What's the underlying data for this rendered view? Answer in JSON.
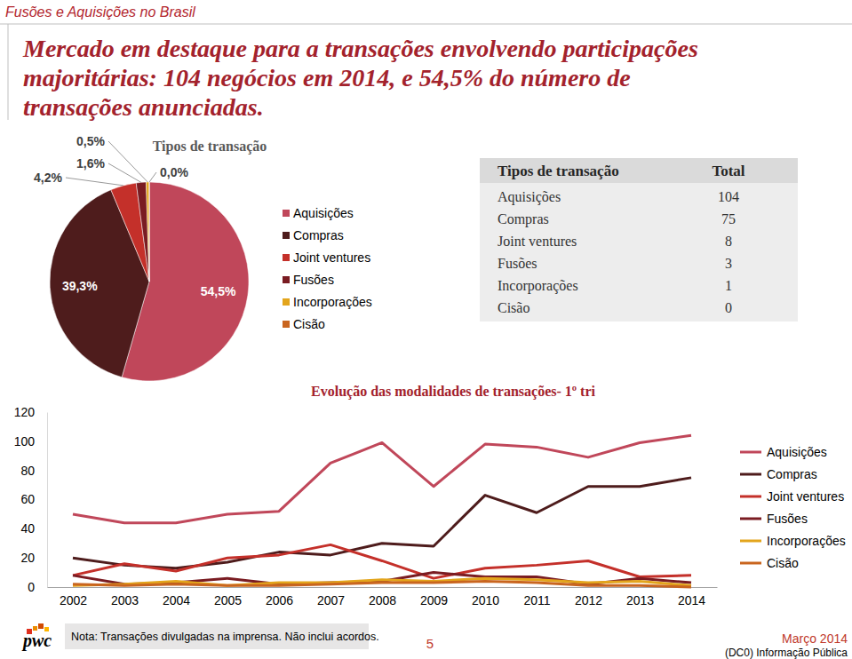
{
  "header": "Fusões e Aquisições no Brasil",
  "headline": [
    "Mercado em destaque para a transações envolvendo participações",
    "majoritárias: 104 negócios em 2014, e 54,5% do número de",
    "transações anunciadas."
  ],
  "chart_data": [
    {
      "type": "pie",
      "title": "Tipos de transação",
      "categories": [
        "Aquisições",
        "Compras",
        "Joint ventures",
        "Fusões",
        "Incorporações",
        "Cisão"
      ],
      "values": [
        54.5,
        39.3,
        4.2,
        1.6,
        0.5,
        0.0
      ],
      "value_labels": [
        "54,5%",
        "39,3%",
        "4,2%",
        "1,6%",
        "0,5%",
        "0,0%"
      ],
      "colors": [
        "#C0475A",
        "#4E1C1C",
        "#C4302A",
        "#7A1C22",
        "#E3A51C",
        "#C9651F"
      ],
      "data_labels": true,
      "legend": "right"
    },
    {
      "type": "line",
      "title": "Evolução das modalidades de transações- 1º tri",
      "categories": [
        "2002",
        "2003",
        "2004",
        "2005",
        "2006",
        "2007",
        "2008",
        "2009",
        "2010",
        "2011",
        "2012",
        "2013",
        "2014"
      ],
      "series": [
        {
          "name": "Aquisições",
          "color": "#C0475A",
          "values": [
            50,
            44,
            44,
            50,
            52,
            85,
            99,
            69,
            98,
            96,
            89,
            99,
            104
          ]
        },
        {
          "name": "Compras",
          "color": "#4E1C1C",
          "values": [
            20,
            15,
            13,
            17,
            24,
            22,
            30,
            28,
            63,
            51,
            69,
            69,
            75
          ]
        },
        {
          "name": "Joint ventures",
          "color": "#C4302A",
          "values": [
            8,
            16,
            11,
            20,
            22,
            29,
            18,
            6,
            13,
            15,
            18,
            7,
            8
          ]
        },
        {
          "name": "Fusões",
          "color": "#7A1C22",
          "values": [
            8,
            2,
            3,
            6,
            2,
            3,
            4,
            10,
            7,
            7,
            2,
            6,
            3
          ]
        },
        {
          "name": "Incorporações",
          "color": "#E3A51C",
          "values": [
            1,
            2,
            4,
            1,
            3,
            3,
            5,
            4,
            6,
            5,
            3,
            4,
            1
          ]
        },
        {
          "name": "Cisão",
          "color": "#C9651F",
          "values": [
            2,
            1,
            2,
            1,
            1,
            2,
            3,
            3,
            4,
            3,
            1,
            1,
            0
          ]
        }
      ],
      "ylim": [
        0,
        120
      ],
      "yticks": [
        0,
        20,
        40,
        60,
        80,
        100,
        120
      ],
      "grid": false,
      "legend": "right"
    }
  ],
  "table": {
    "headers": [
      "Tipos de transação",
      "Total"
    ],
    "rows": [
      [
        "Aquisições",
        104
      ],
      [
        "Compras",
        75
      ],
      [
        "Joint ventures",
        8
      ],
      [
        "Fusões",
        3
      ],
      [
        "Incorporações",
        1
      ],
      [
        "Cisão",
        0
      ]
    ]
  },
  "footer": {
    "logo": "pwc",
    "note": "Nota: Transações divulgadas na imprensa. Não inclui acordos.",
    "page": "5",
    "date": "Março 2014",
    "classification": "(DC0) Informação Pública"
  }
}
